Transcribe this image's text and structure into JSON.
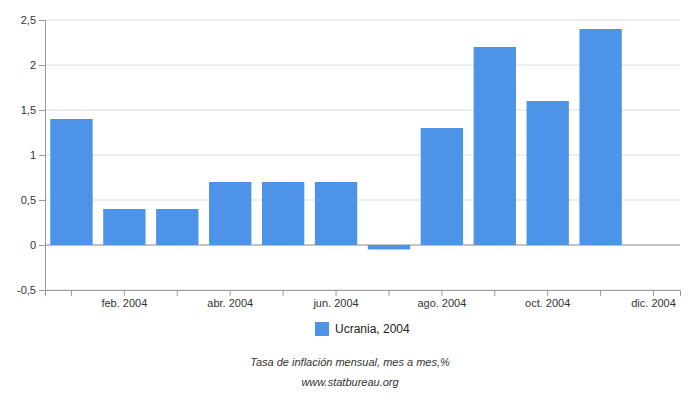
{
  "chart_data": {
    "type": "bar",
    "subtitle": "Tasa de inflación mensual, mes a mes,%",
    "source": "www.statbureau.org",
    "categories": [
      null,
      "feb. 2004",
      null,
      "abr. 2004",
      null,
      "jun. 2004",
      null,
      "ago. 2004",
      null,
      "oct. 2004",
      null,
      "dic. 2004"
    ],
    "series": [
      {
        "name": "Ucrania, 2004",
        "color": "#4d94e8",
        "values": [
          1.4,
          0.4,
          0.4,
          0.7,
          0.7,
          0.7,
          -0.05,
          1.3,
          2.2,
          1.6,
          2.4,
          null
        ]
      }
    ],
    "ylim": [
      -0.5,
      2.5
    ],
    "yticks": [
      {
        "value": -0.5,
        "label": "-0,5"
      },
      0,
      {
        "value": 0.5,
        "label": "0,5"
      },
      1,
      {
        "value": 1.5,
        "label": "1,5"
      },
      2,
      {
        "value": 2.5,
        "label": "2,5"
      }
    ],
    "grid": true,
    "legend": "bottom"
  }
}
